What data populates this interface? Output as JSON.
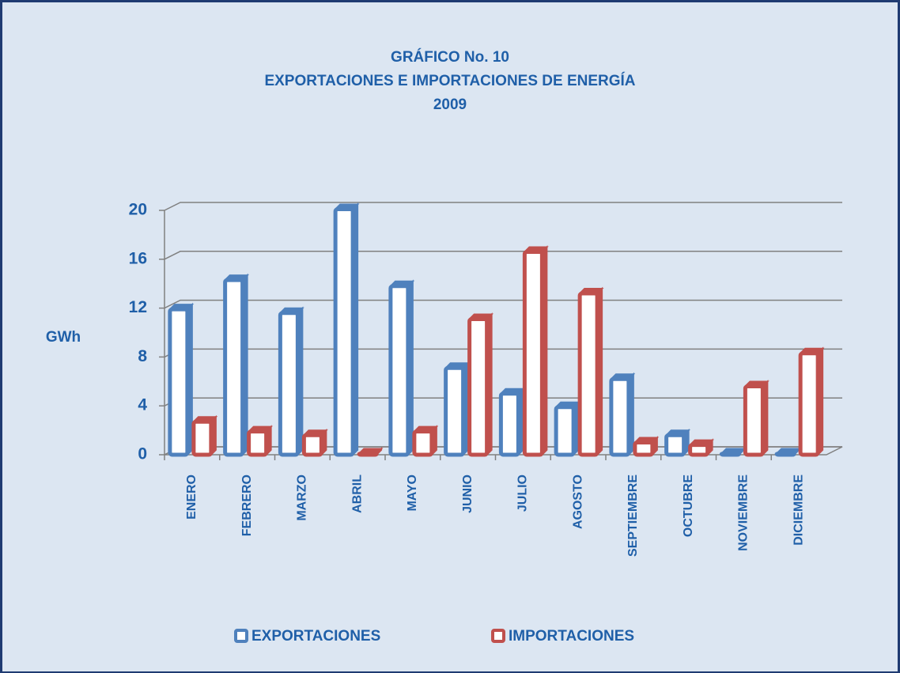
{
  "chart_data": {
    "type": "bar",
    "title": [
      "GRÁFICO No. 10",
      "EXPORTACIONES E IMPORTACIONES DE ENERGÍA",
      "2009"
    ],
    "y_label": "GWh",
    "categories": [
      "ENERO",
      "FEBRERO",
      "MARZO",
      "ABRIL",
      "MAYO",
      "JUNIO",
      "JULIO",
      "AGOSTO",
      "SEPTIEMBRE",
      "OCTUBRE",
      "NOVIEMBRE",
      "DICIEMBRE"
    ],
    "series": [
      {
        "name": "EXPORTACIONES",
        "color": "#4f81bd",
        "values": [
          11.9,
          14.3,
          11.6,
          20.1,
          13.8,
          7.1,
          5.0,
          3.9,
          6.2,
          1.6,
          0.1,
          0.1
        ]
      },
      {
        "name": "IMPORTACIONES",
        "color": "#c0504d",
        "values": [
          2.7,
          1.9,
          1.6,
          0.1,
          1.9,
          11.1,
          16.6,
          13.2,
          1.0,
          0.8,
          5.6,
          8.3
        ]
      }
    ],
    "ylim": [
      0,
      20
    ],
    "yticks": [
      0,
      4,
      8,
      12,
      16,
      20
    ],
    "grid": true,
    "legend": "bottom"
  }
}
